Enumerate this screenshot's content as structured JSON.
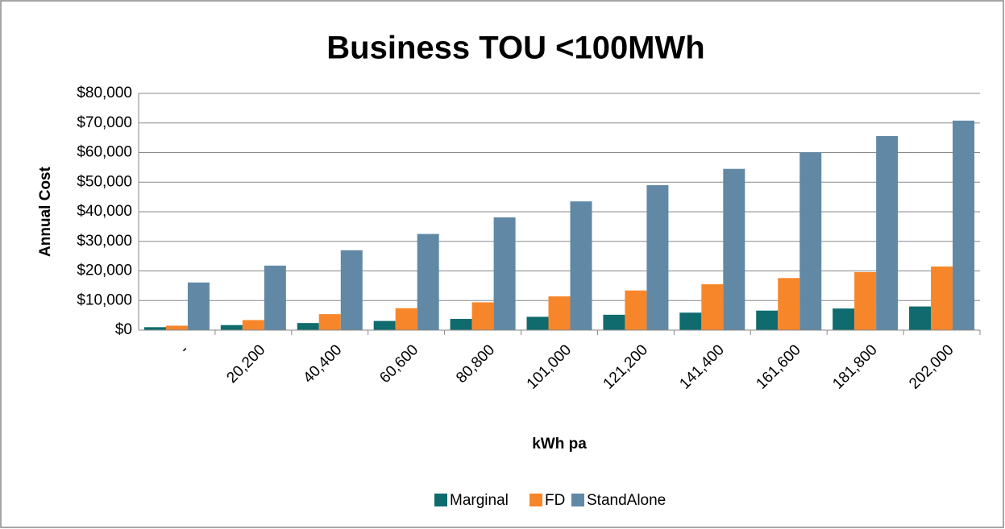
{
  "chart_data": {
    "type": "bar",
    "title": "Business TOU <100MWh",
    "xlabel": "kWh pa",
    "ylabel": "Annual Cost",
    "categories": [
      "-",
      "20,200",
      "40,400",
      "60,600",
      "80,800",
      "101,000",
      "121,200",
      "141,400",
      "161,600",
      "181,800",
      "202,000"
    ],
    "series": [
      {
        "name": "Marginal",
        "color": "#0f6b6e",
        "values": [
          1000,
          1700,
          2400,
          3100,
          3800,
          4500,
          5200,
          5900,
          6600,
          7300,
          8000
        ]
      },
      {
        "name": "FD",
        "color": "#f7862a",
        "values": [
          1500,
          3400,
          5400,
          7400,
          9400,
          11400,
          13400,
          15500,
          17600,
          19600,
          21500
        ]
      },
      {
        "name": "StandAlone",
        "color": "#6189a6",
        "values": [
          16100,
          21800,
          27000,
          32500,
          38100,
          43500,
          49000,
          54500,
          60100,
          65600,
          70800
        ]
      }
    ],
    "ylim": [
      0,
      80000
    ],
    "yticks": [
      {
        "value": 0,
        "label": "$0"
      },
      {
        "value": 10000,
        "label": "$10,000"
      },
      {
        "value": 20000,
        "label": "$20,000"
      },
      {
        "value": 30000,
        "label": "$30,000"
      },
      {
        "value": 40000,
        "label": "$40,000"
      },
      {
        "value": 50000,
        "label": "$50,000"
      },
      {
        "value": 60000,
        "label": "$60,000"
      },
      {
        "value": 70000,
        "label": "$70,000"
      },
      {
        "value": 80000,
        "label": "$80,000"
      }
    ],
    "grid": true,
    "legend": "bottom"
  }
}
